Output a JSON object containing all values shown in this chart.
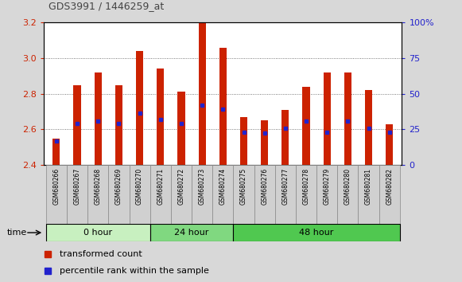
{
  "title": "GDS3991 / 1446259_at",
  "samples": [
    "GSM680266",
    "GSM680267",
    "GSM680268",
    "GSM680269",
    "GSM680270",
    "GSM680271",
    "GSM680272",
    "GSM680273",
    "GSM680274",
    "GSM680275",
    "GSM680276",
    "GSM680277",
    "GSM680278",
    "GSM680279",
    "GSM680280",
    "GSM680281",
    "GSM680282"
  ],
  "bar_tops": [
    2.55,
    2.85,
    2.92,
    2.85,
    3.04,
    2.94,
    2.81,
    3.2,
    3.06,
    2.67,
    2.65,
    2.71,
    2.84,
    2.92,
    2.92,
    2.82,
    2.63
  ],
  "bar_bottom": 2.4,
  "percentile_values": [
    2.535,
    2.635,
    2.645,
    2.635,
    2.69,
    2.655,
    2.635,
    2.735,
    2.715,
    2.585,
    2.578,
    2.605,
    2.645,
    2.583,
    2.645,
    2.605,
    2.583
  ],
  "groups": [
    {
      "label": "0 hour",
      "start": 0,
      "end": 5,
      "color": "#c8f0c0"
    },
    {
      "label": "24 hour",
      "start": 5,
      "end": 9,
      "color": "#80d880"
    },
    {
      "label": "48 hour",
      "start": 9,
      "end": 17,
      "color": "#50c850"
    }
  ],
  "ylim_left": [
    2.4,
    3.2
  ],
  "ylim_right": [
    0,
    100
  ],
  "yticks_left": [
    2.4,
    2.6,
    2.8,
    3.0,
    3.2
  ],
  "yticks_right": [
    0,
    25,
    50,
    75,
    100
  ],
  "bar_color": "#cc2200",
  "marker_color": "#2222cc",
  "bg_color": "#d8d8d8",
  "plot_bg": "#ffffff",
  "grid_color": "#555555",
  "title_color": "#444444",
  "left_axis_color": "#cc2200",
  "right_axis_color": "#2222cc",
  "legend_items": [
    "transformed count",
    "percentile rank within the sample"
  ],
  "legend_colors": [
    "#cc2200",
    "#2222cc"
  ]
}
